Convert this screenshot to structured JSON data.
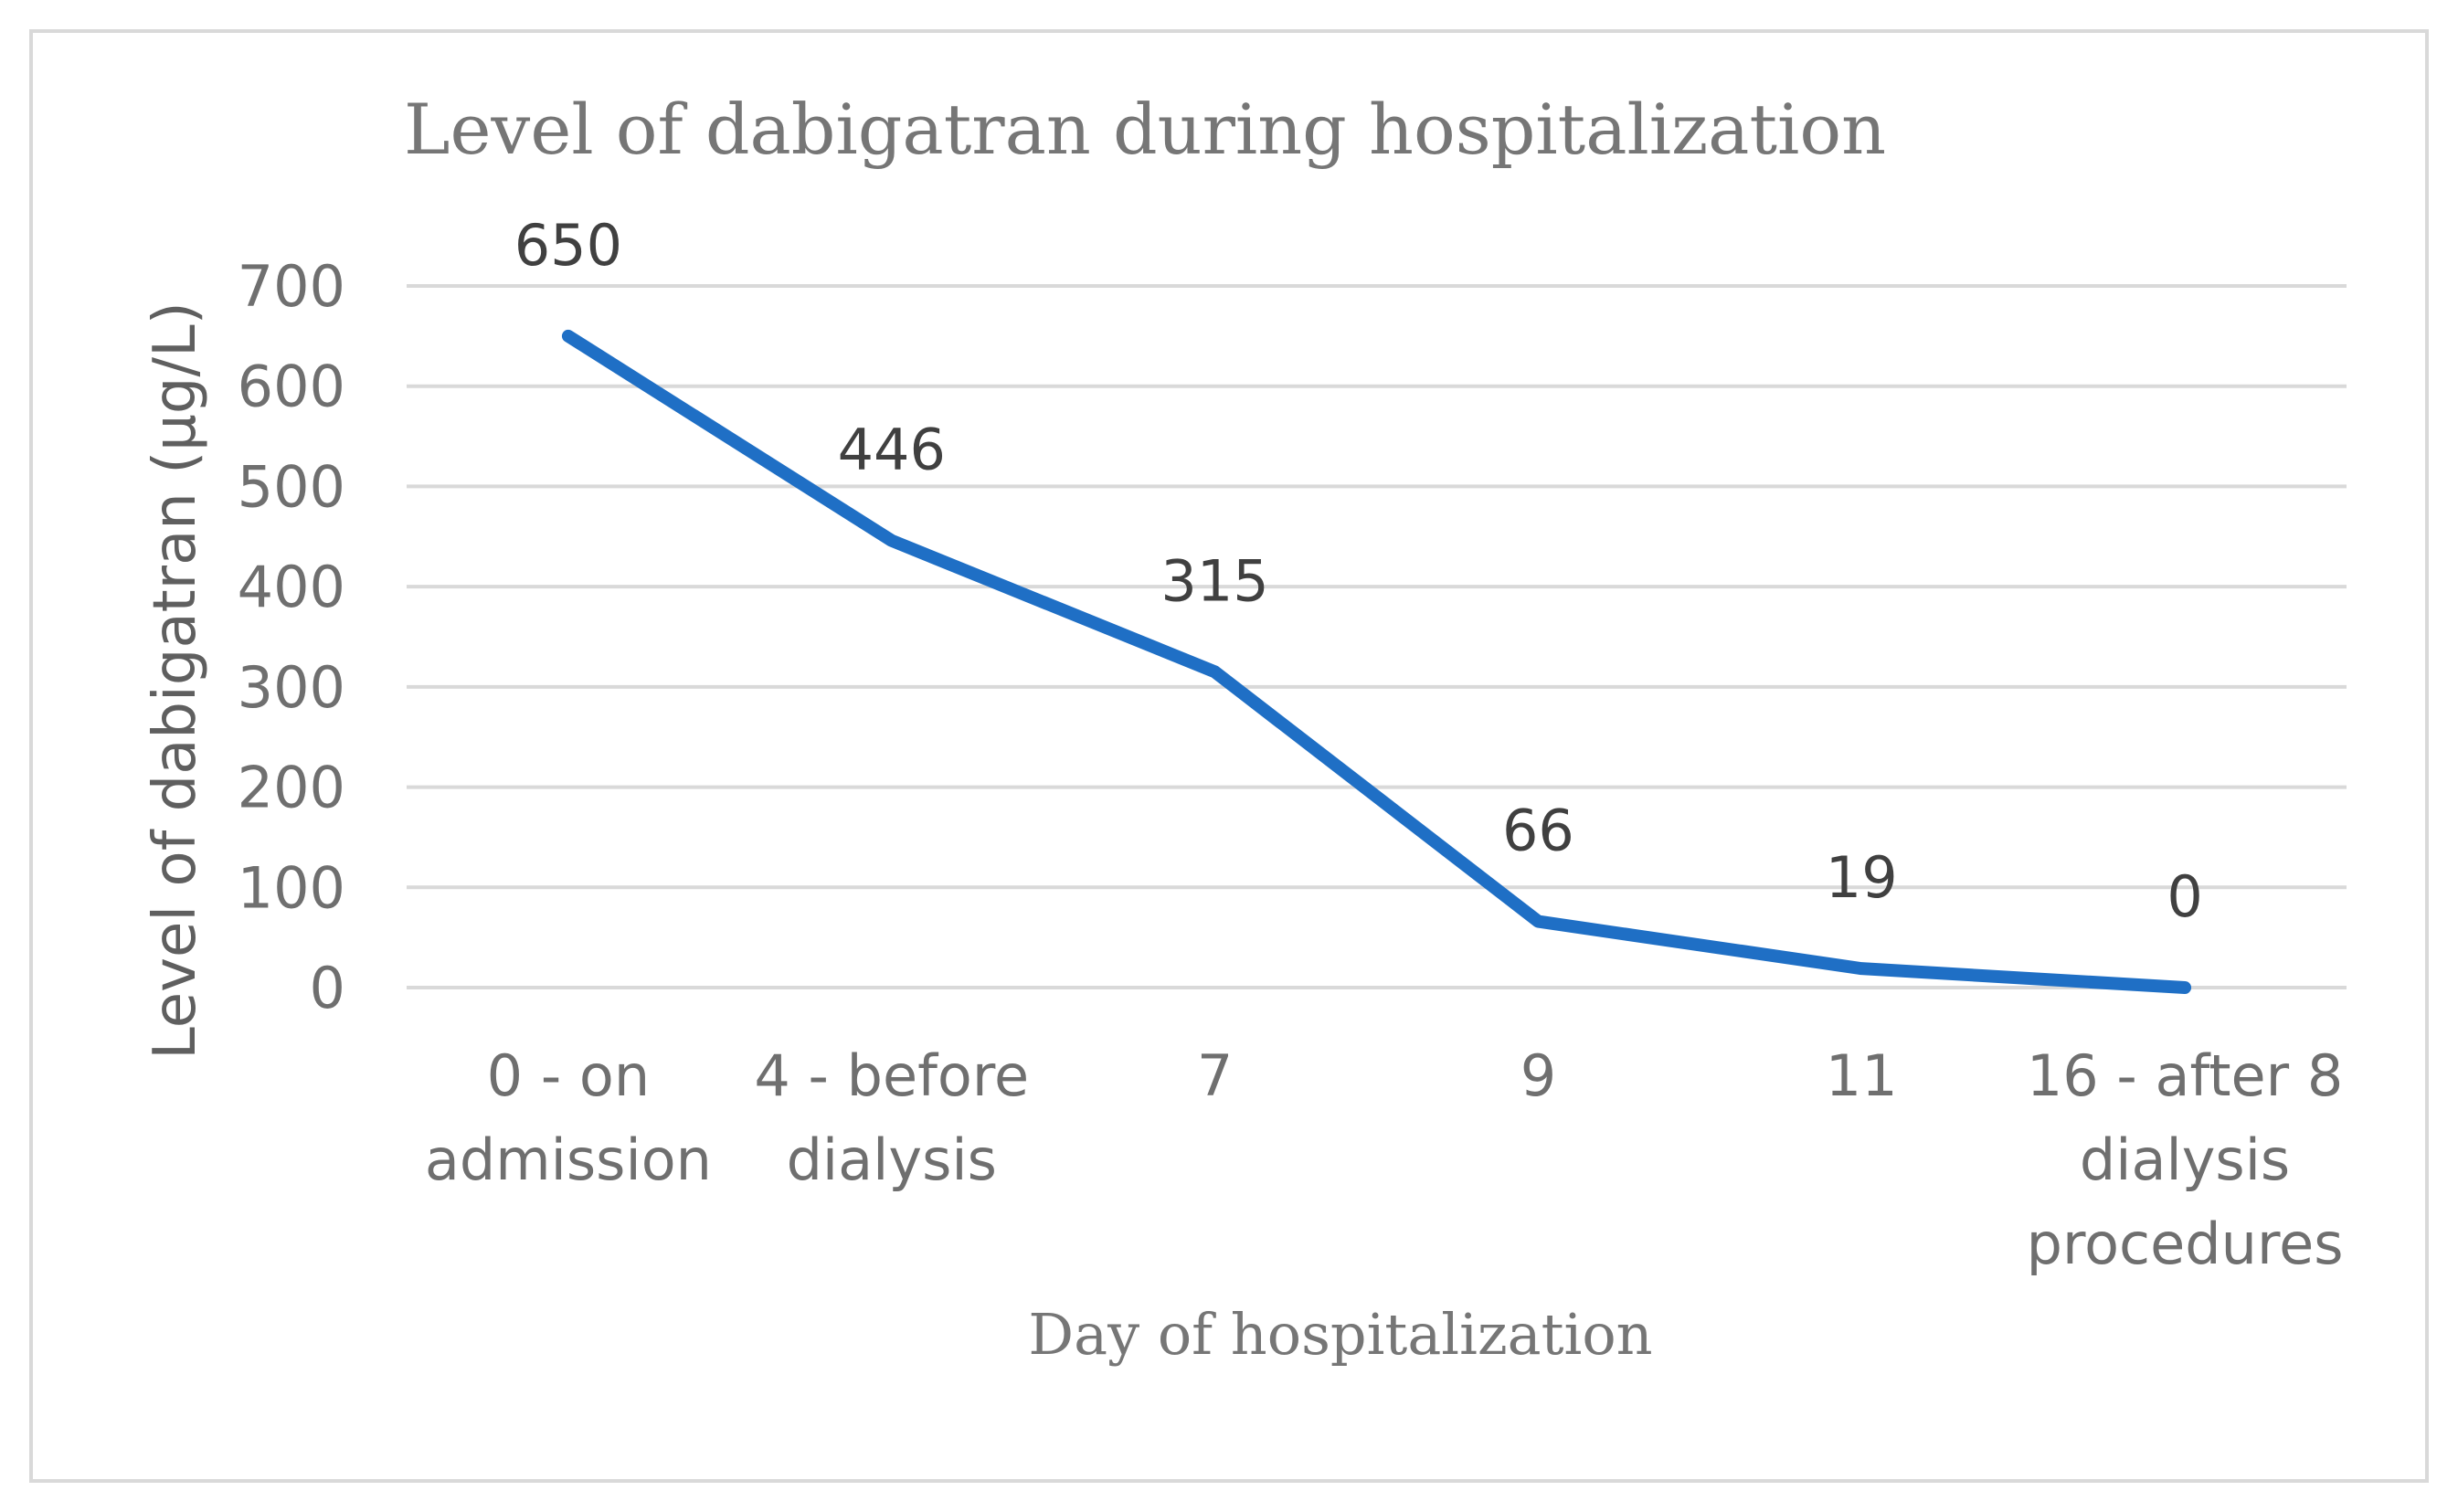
{
  "chart_data": {
    "type": "line",
    "title": "Level of dabigatran during hospitalization",
    "xlabel": "Day of hospitalization",
    "ylabel": "Level of dabigatran (μg/L)",
    "categories": [
      [
        "0 - on",
        "admission"
      ],
      [
        "4 - before",
        "dialysis"
      ],
      [
        "7"
      ],
      [
        "9"
      ],
      [
        "11"
      ],
      [
        "16 - after 8",
        "dialysis",
        "procedures"
      ]
    ],
    "series": [
      {
        "name": "Level of dabigatran",
        "values": [
          650,
          446,
          315,
          66,
          19,
          0
        ],
        "color": "#1f6fc5"
      }
    ],
    "data_labels": [
      "650",
      "446",
      "315",
      "66",
      "19",
      "0"
    ],
    "ylim": [
      0,
      700
    ],
    "yticks": [
      0,
      100,
      200,
      300,
      400,
      500,
      600,
      700
    ],
    "grid": true,
    "legend": "none",
    "colors": {
      "line": "#1f6fc5",
      "grid": "#d9d9d9",
      "border": "#d9d9d9"
    }
  }
}
